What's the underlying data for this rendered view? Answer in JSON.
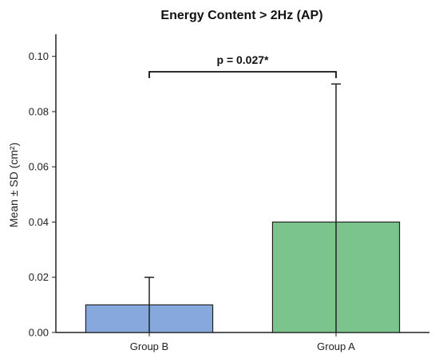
{
  "chart_data": {
    "type": "bar",
    "title": "Energy Content > 2Hz (AP)",
    "xlabel": "",
    "ylabel": "Mean ± SD (cm²)",
    "categories": [
      "Group B",
      "Group A"
    ],
    "values": [
      0.01,
      0.04
    ],
    "errors": [
      0.01,
      0.05
    ],
    "colors": [
      "#86a8dc",
      "#7cc48e"
    ],
    "ylim": [
      0,
      0.108
    ],
    "yticks": [
      0.0,
      0.02,
      0.04,
      0.06,
      0.08,
      0.1
    ],
    "ytick_labels": [
      "0.00",
      "0.02",
      "0.04",
      "0.06",
      "0.08",
      "0.10"
    ],
    "grid": false,
    "significance": {
      "between": [
        "Group B",
        "Group A"
      ],
      "label": "p = 0.027*"
    }
  }
}
